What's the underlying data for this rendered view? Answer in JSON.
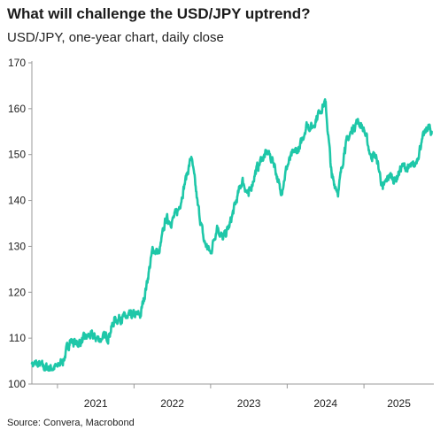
{
  "title": "What will challenge the USD/JPY uptrend?",
  "subtitle": "USD/JPY, one-year chart, daily close",
  "source": "Source: Convera, Macrobond",
  "line_color": "#1ec7a8",
  "chart_data": {
    "type": "line",
    "title": "What will challenge the USD/JPY uptrend?",
    "subtitle": "USD/JPY, one-year chart, daily close",
    "xlabel": "",
    "ylabel": "",
    "ylim": [
      100,
      170
    ],
    "yticks": [
      100,
      110,
      120,
      130,
      140,
      150,
      160,
      170
    ],
    "xticks": [
      "2021",
      "2022",
      "2023",
      "2024",
      "2025"
    ],
    "xlim": [
      "2020-09-01",
      "2025-11-30"
    ],
    "grid": false,
    "series": [
      {
        "values": [
          [
            "2020-09-01",
            104.5
          ],
          [
            "2020-10-01",
            104.2
          ],
          [
            "2020-11-01",
            103.6
          ],
          [
            "2020-12-01",
            103.5
          ],
          [
            "2021-01-01",
            103.8
          ],
          [
            "2021-02-01",
            105.5
          ],
          [
            "2021-03-01",
            109.5
          ],
          [
            "2021-04-01",
            108.8
          ],
          [
            "2021-05-01",
            109.5
          ],
          [
            "2021-06-01",
            110.6
          ],
          [
            "2021-07-01",
            110.0
          ],
          [
            "2021-08-01",
            109.8
          ],
          [
            "2021-09-01",
            110.5
          ],
          [
            "2021-10-01",
            114.0
          ],
          [
            "2021-11-01",
            114.5
          ],
          [
            "2021-12-01",
            114.4
          ],
          [
            "2022-01-01",
            115.0
          ],
          [
            "2022-02-01",
            115.0
          ],
          [
            "2022-03-01",
            121.5
          ],
          [
            "2022-04-01",
            129.5
          ],
          [
            "2022-05-01",
            128.5
          ],
          [
            "2022-06-01",
            136.0
          ],
          [
            "2022-07-01",
            135.5
          ],
          [
            "2022-08-01",
            138.0
          ],
          [
            "2022-09-01",
            144.0
          ],
          [
            "2022-10-01",
            149.5
          ],
          [
            "2022-11-01",
            139.0
          ],
          [
            "2022-12-01",
            131.0
          ],
          [
            "2023-01-01",
            128.5
          ],
          [
            "2023-02-01",
            134.5
          ],
          [
            "2023-03-01",
            131.5
          ],
          [
            "2023-04-01",
            134.5
          ],
          [
            "2023-05-01",
            139.5
          ],
          [
            "2023-06-01",
            144.5
          ],
          [
            "2023-07-01",
            141.0
          ],
          [
            "2023-08-01",
            146.0
          ],
          [
            "2023-09-01",
            149.0
          ],
          [
            "2023-10-01",
            150.5
          ],
          [
            "2023-11-01",
            148.0
          ],
          [
            "2023-12-01",
            141.5
          ],
          [
            "2024-01-01",
            147.5
          ],
          [
            "2024-02-01",
            150.5
          ],
          [
            "2024-03-01",
            151.3
          ],
          [
            "2024-04-01",
            156.5
          ],
          [
            "2024-05-01",
            156.0
          ],
          [
            "2024-06-01",
            159.5
          ],
          [
            "2024-07-01",
            161.5
          ],
          [
            "2024-08-01",
            145.0
          ],
          [
            "2024-09-01",
            142.0
          ],
          [
            "2024-10-01",
            151.5
          ],
          [
            "2024-11-01",
            155.0
          ],
          [
            "2024-12-01",
            157.5
          ],
          [
            "2025-01-01",
            155.5
          ],
          [
            "2025-02-01",
            150.0
          ],
          [
            "2025-03-01",
            149.5
          ],
          [
            "2025-04-01",
            142.5
          ],
          [
            "2025-05-01",
            145.5
          ],
          [
            "2025-06-01",
            144.5
          ],
          [
            "2025-07-01",
            147.5
          ],
          [
            "2025-08-01",
            147.0
          ],
          [
            "2025-09-01",
            147.5
          ],
          [
            "2025-10-01",
            152.5
          ],
          [
            "2025-11-01",
            156.0
          ],
          [
            "2025-11-20",
            155.0
          ]
        ]
      }
    ]
  }
}
